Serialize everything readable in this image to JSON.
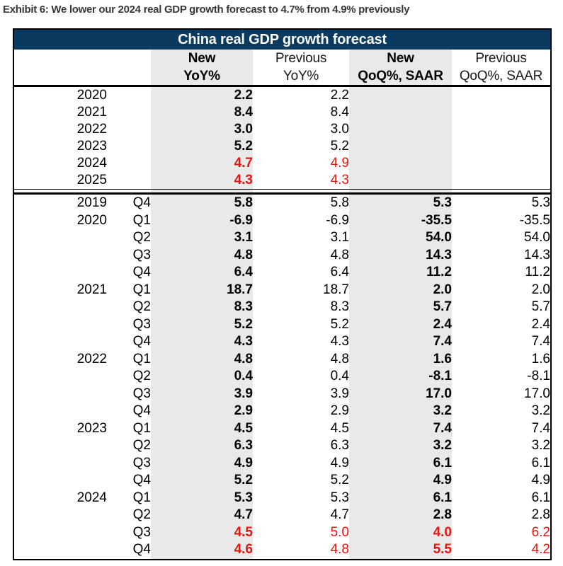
{
  "exhibit_title": "Exhibit 6: We lower our 2024 real GDP growth forecast to 4.7% from 4.9% previously",
  "chart_data": {
    "type": "table",
    "title": "China real GDP growth forecast",
    "column_groups": [
      {
        "line1": "New",
        "line2": "YoY%"
      },
      {
        "line1": "Previous",
        "line2": "YoY%"
      },
      {
        "line1": "New",
        "line2": "QoQ%, SAAR"
      },
      {
        "line1": "Previous",
        "line2": "QoQ%, SAAR"
      }
    ],
    "annual_rows": [
      {
        "year": "2020",
        "values": [
          "2.2",
          "2.2",
          "",
          ""
        ],
        "highlight": false
      },
      {
        "year": "2021",
        "values": [
          "8.4",
          "8.4",
          "",
          ""
        ],
        "highlight": false
      },
      {
        "year": "2022",
        "values": [
          "3.0",
          "3.0",
          "",
          ""
        ],
        "highlight": false
      },
      {
        "year": "2023",
        "values": [
          "5.2",
          "5.2",
          "",
          ""
        ],
        "highlight": false
      },
      {
        "year": "2024",
        "values": [
          "4.7",
          "4.9",
          "",
          ""
        ],
        "highlight": true
      },
      {
        "year": "2025",
        "values": [
          "4.3",
          "4.3",
          "",
          ""
        ],
        "highlight": true
      }
    ],
    "quarterly_rows": [
      {
        "year": "2019",
        "quarter": "Q4",
        "values": [
          "5.8",
          "5.8",
          "5.3",
          "5.3"
        ],
        "highlight": false
      },
      {
        "year": "2020",
        "quarter": "Q1",
        "values": [
          "-6.9",
          "-6.9",
          "-35.5",
          "-35.5"
        ],
        "highlight": false
      },
      {
        "year": "",
        "quarter": "Q2",
        "values": [
          "3.1",
          "3.1",
          "54.0",
          "54.0"
        ],
        "highlight": false
      },
      {
        "year": "",
        "quarter": "Q3",
        "values": [
          "4.8",
          "4.8",
          "14.3",
          "14.3"
        ],
        "highlight": false
      },
      {
        "year": "",
        "quarter": "Q4",
        "values": [
          "6.4",
          "6.4",
          "11.2",
          "11.2"
        ],
        "highlight": false
      },
      {
        "year": "2021",
        "quarter": "Q1",
        "values": [
          "18.7",
          "18.7",
          "2.0",
          "2.0"
        ],
        "highlight": false
      },
      {
        "year": "",
        "quarter": "Q2",
        "values": [
          "8.3",
          "8.3",
          "5.7",
          "5.7"
        ],
        "highlight": false
      },
      {
        "year": "",
        "quarter": "Q3",
        "values": [
          "5.2",
          "5.2",
          "2.4",
          "2.4"
        ],
        "highlight": false
      },
      {
        "year": "",
        "quarter": "Q4",
        "values": [
          "4.3",
          "4.3",
          "7.4",
          "7.4"
        ],
        "highlight": false
      },
      {
        "year": "2022",
        "quarter": "Q1",
        "values": [
          "4.8",
          "4.8",
          "1.6",
          "1.6"
        ],
        "highlight": false
      },
      {
        "year": "",
        "quarter": "Q2",
        "values": [
          "0.4",
          "0.4",
          "-8.1",
          "-8.1"
        ],
        "highlight": false
      },
      {
        "year": "",
        "quarter": "Q3",
        "values": [
          "3.9",
          "3.9",
          "17.0",
          "17.0"
        ],
        "highlight": false
      },
      {
        "year": "",
        "quarter": "Q4",
        "values": [
          "2.9",
          "2.9",
          "3.2",
          "3.2"
        ],
        "highlight": false
      },
      {
        "year": "2023",
        "quarter": "Q1",
        "values": [
          "4.5",
          "4.5",
          "7.4",
          "7.4"
        ],
        "highlight": false
      },
      {
        "year": "",
        "quarter": "Q2",
        "values": [
          "6.3",
          "6.3",
          "3.2",
          "3.2"
        ],
        "highlight": false
      },
      {
        "year": "",
        "quarter": "Q3",
        "values": [
          "4.9",
          "4.9",
          "6.1",
          "6.1"
        ],
        "highlight": false
      },
      {
        "year": "",
        "quarter": "Q4",
        "values": [
          "5.2",
          "5.2",
          "4.9",
          "4.9"
        ],
        "highlight": false
      },
      {
        "year": "2024",
        "quarter": "Q1",
        "values": [
          "5.3",
          "5.3",
          "6.1",
          "6.1"
        ],
        "highlight": false
      },
      {
        "year": "",
        "quarter": "Q2",
        "values": [
          "4.7",
          "4.7",
          "2.8",
          "2.8"
        ],
        "highlight": false
      },
      {
        "year": "",
        "quarter": "Q3",
        "values": [
          "4.5",
          "5.0",
          "4.0",
          "6.2"
        ],
        "highlight": true
      },
      {
        "year": "",
        "quarter": "Q4",
        "values": [
          "4.6",
          "4.8",
          "5.5",
          "4.2"
        ],
        "highlight": true
      }
    ]
  },
  "colors": {
    "header_navy": "#0a3a60",
    "shaded_column": "#e9e9e9",
    "highlight_red": "#e8140e",
    "text": "#000000"
  }
}
